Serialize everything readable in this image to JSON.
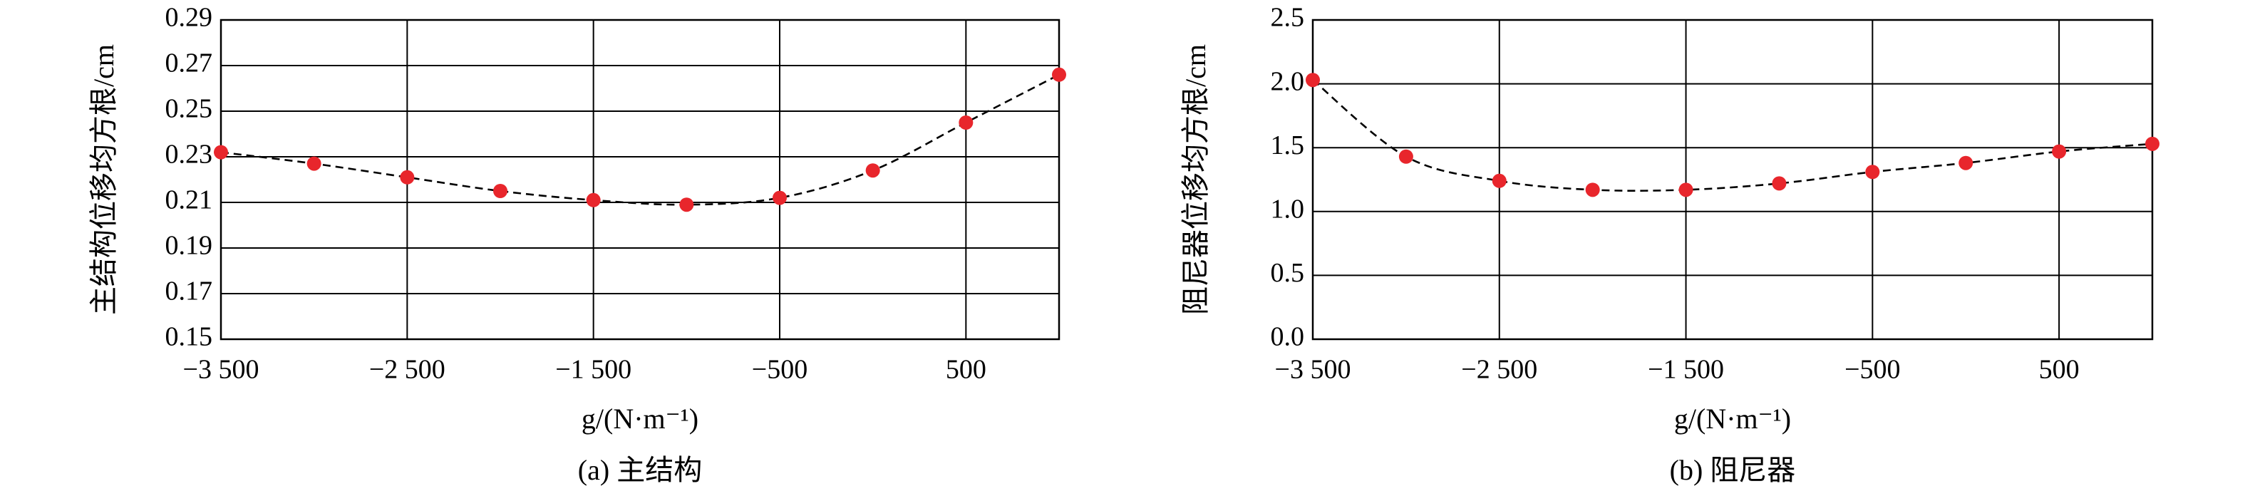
{
  "chart_data": [
    {
      "type": "scatter",
      "y_label": "主结构位移均方根/cm",
      "x_label": "g/(N·m⁻¹)",
      "caption": "(a) 主结构",
      "x": [
        -3500,
        -3000,
        -2500,
        -2000,
        -1500,
        -1000,
        -500,
        0,
        500,
        1000
      ],
      "values": [
        0.232,
        0.227,
        0.221,
        0.215,
        0.211,
        0.209,
        0.212,
        0.224,
        0.245,
        0.266
      ],
      "color": "#e8262c",
      "line_style": "dashed",
      "line_color": "#000000",
      "xlim": [
        -3500,
        1000
      ],
      "xticks": [
        {
          "value": -3500,
          "label": "−3 500"
        },
        {
          "value": -2500,
          "label": "−2 500"
        },
        {
          "value": -1500,
          "label": "−1 500"
        },
        {
          "value": -500,
          "label": "−500"
        },
        500
      ],
      "ylim": [
        0.15,
        0.29
      ],
      "yticks": [
        0.15,
        0.17,
        0.19,
        0.21,
        0.23,
        0.25,
        0.27,
        0.29
      ],
      "grid": true
    },
    {
      "type": "scatter",
      "y_label": "阻尼器位移均方根/cm",
      "x_label": "g/(N·m⁻¹)",
      "caption": "(b) 阻尼器",
      "x": [
        -3500,
        -3000,
        -2500,
        -2000,
        -1500,
        -1000,
        -500,
        0,
        500,
        1000
      ],
      "values": [
        2.03,
        1.43,
        1.24,
        1.17,
        1.17,
        1.22,
        1.31,
        1.38,
        1.47,
        1.53
      ],
      "color": "#e8262c",
      "line_style": "dashed",
      "line_color": "#000000",
      "xlim": [
        -3500,
        1000
      ],
      "xticks": [
        {
          "value": -3500,
          "label": "−3 500"
        },
        {
          "value": -2500,
          "label": "−2 500"
        },
        {
          "value": -1500,
          "label": "−1 500"
        },
        {
          "value": -500,
          "label": "−500"
        },
        500
      ],
      "ylim": [
        0,
        2.5
      ],
      "yticks": [
        {
          "value": 0,
          "label": "0.0"
        },
        0.5,
        {
          "value": 1,
          "label": "1.0"
        },
        1.5,
        {
          "value": 2,
          "label": "2.0"
        },
        2.5
      ],
      "grid": true
    }
  ]
}
